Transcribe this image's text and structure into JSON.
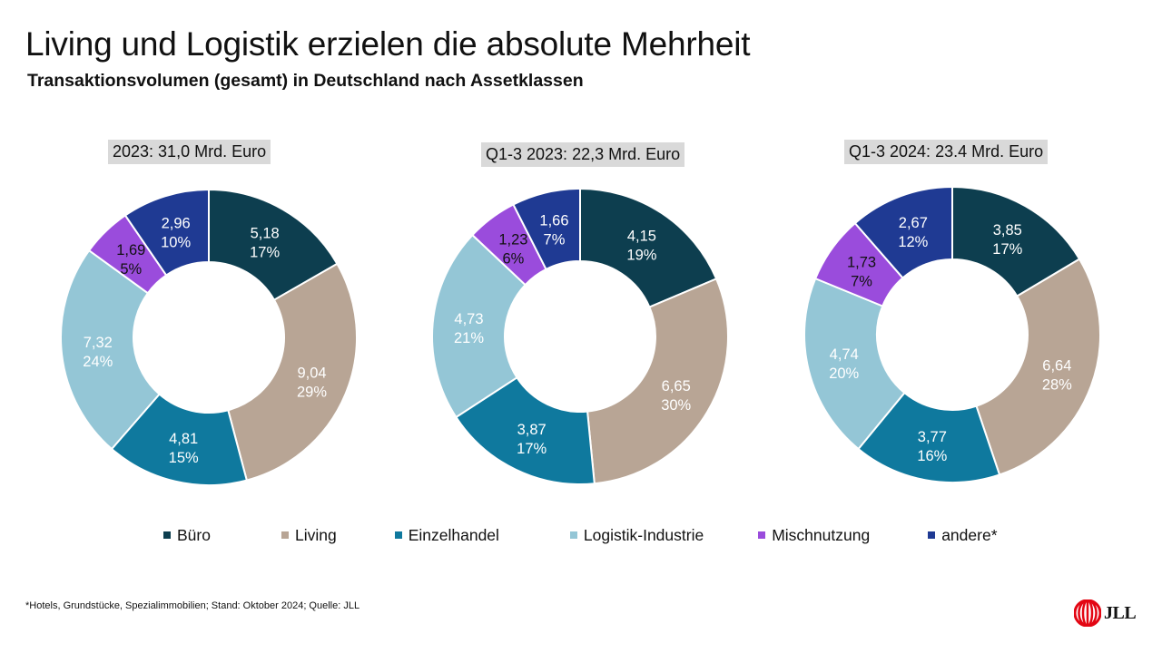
{
  "title": "Living und Logistik erzielen die absolute Mehrheit",
  "subtitle": "Transaktionsvolumen (gesamt) in Deutschland nach Assetklassen",
  "colors": {
    "Büro": "#0d3e4f",
    "Living": "#b8a595",
    "Einzelhandel": "#0f799e",
    "Logistik-Industrie": "#94c6d6",
    "Mischnutzung": "#9a4cdc",
    "andere*": "#1f3a93"
  },
  "legend": [
    "Büro",
    "Living",
    "Einzelhandel",
    "Logistik-Industrie",
    "Mischnutzung",
    "andere*"
  ],
  "chart_data": [
    {
      "type": "pie",
      "title": "2023: 31,0 Mrd. Euro",
      "categories": [
        "Büro",
        "Living",
        "Einzelhandel",
        "Logistik-Industrie",
        "Mischnutzung",
        "andere*"
      ],
      "values": [
        5.18,
        9.04,
        4.81,
        7.32,
        1.69,
        2.96
      ],
      "value_labels": [
        "5,18",
        "9,04",
        "4,81",
        "7,32",
        "1,69",
        "2,96"
      ],
      "percent_labels": [
        "17%",
        "29%",
        "15%",
        "24%",
        "5%",
        "10%"
      ]
    },
    {
      "type": "pie",
      "title": "Q1-3 2023: 22,3 Mrd. Euro",
      "categories": [
        "Büro",
        "Living",
        "Einzelhandel",
        "Logistik-Industrie",
        "Mischnutzung",
        "andere*"
      ],
      "values": [
        4.15,
        6.65,
        3.87,
        4.73,
        1.23,
        1.66
      ],
      "value_labels": [
        "4,15",
        "6,65",
        "3,87",
        "4,73",
        "1,23",
        "1,66"
      ],
      "percent_labels": [
        "19%",
        "30%",
        "17%",
        "21%",
        "6%",
        "7%"
      ]
    },
    {
      "type": "pie",
      "title": "Q1-3 2024: 23.4 Mrd. Euro",
      "categories": [
        "Büro",
        "Living",
        "Einzelhandel",
        "Logistik-Industrie",
        "Mischnutzung",
        "andere*"
      ],
      "values": [
        3.85,
        6.64,
        3.77,
        4.74,
        1.73,
        2.67
      ],
      "value_labels": [
        "3,85",
        "6,64",
        "3,77",
        "4,74",
        "1,73",
        "2,67"
      ],
      "percent_labels": [
        "17%",
        "28%",
        "16%",
        "20%",
        "7%",
        "12%"
      ]
    }
  ],
  "footnote": "*Hotels, Grundstücke, Spezialimmobilien; Stand: Oktober 2024; Quelle: JLL",
  "logo": {
    "text": "JLL",
    "icon": "jll-logo-icon",
    "color": "#e30613"
  }
}
